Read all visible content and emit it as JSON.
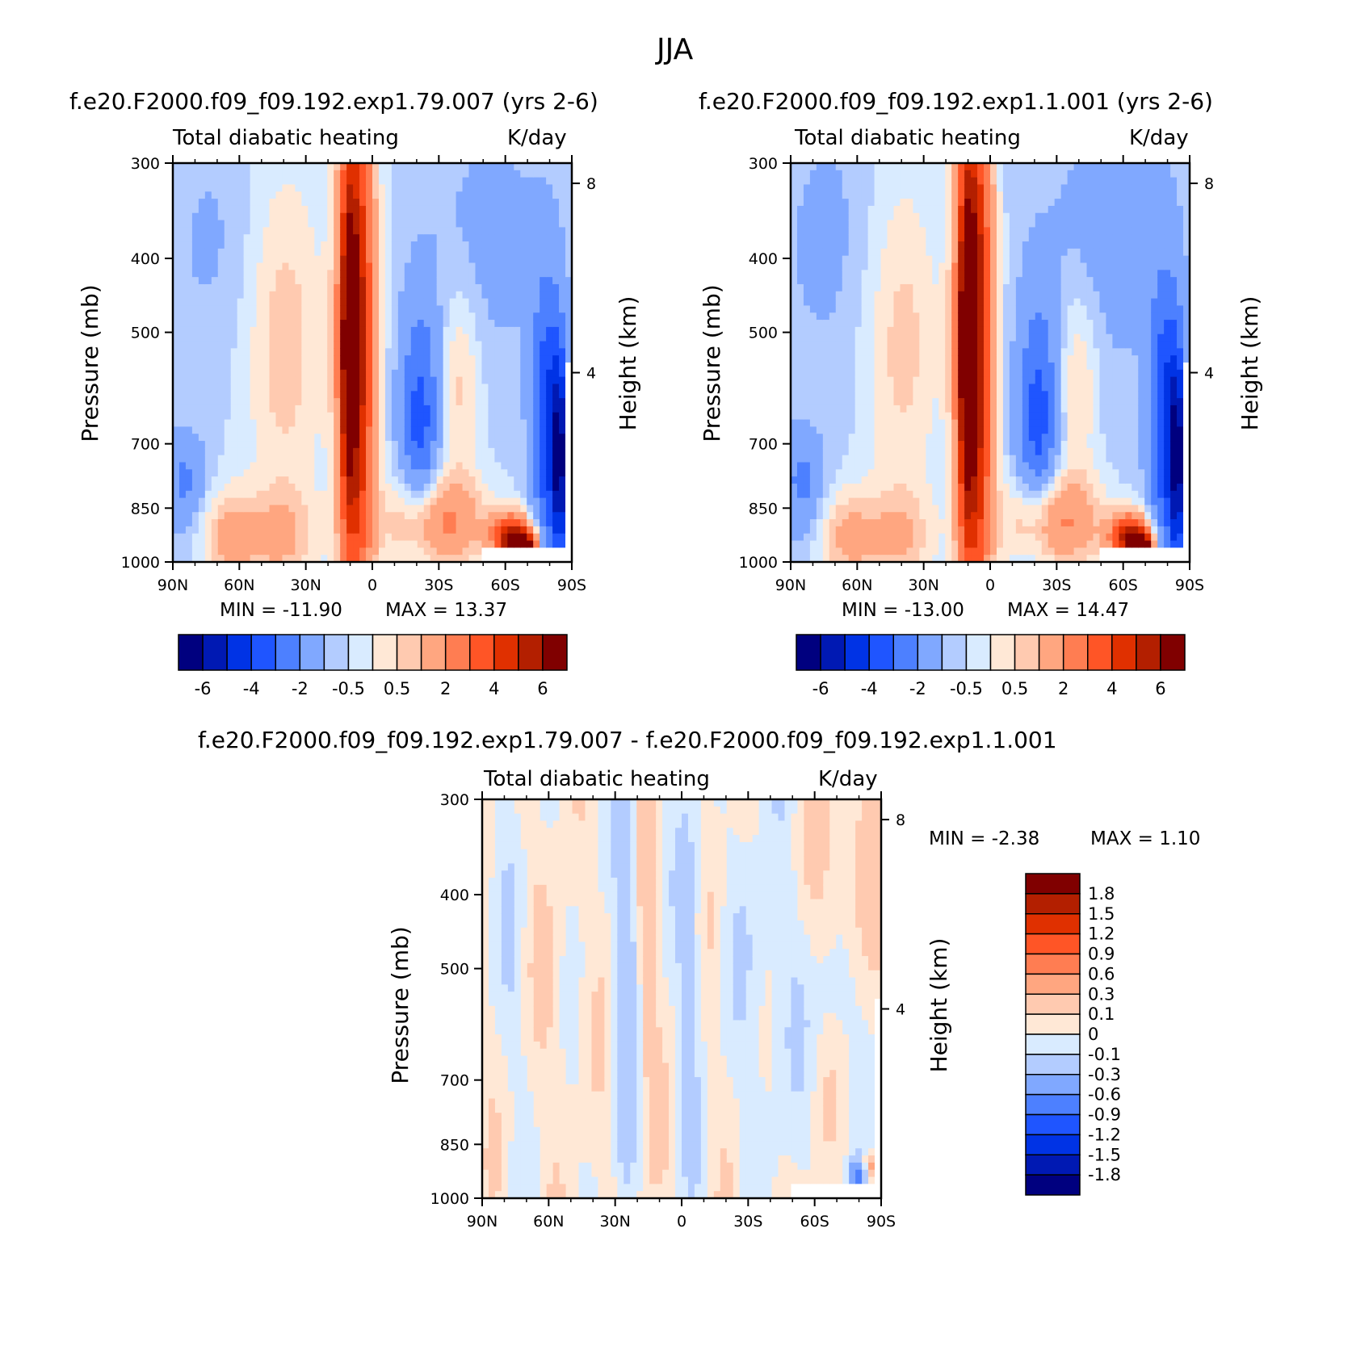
{
  "title": "JJA",
  "colors": {
    "palette": [
      "#00007f",
      "#0019b3",
      "#0033e5",
      "#1f55ff",
      "#4d80ff",
      "#80a8ff",
      "#b3ccff",
      "#d9ebff",
      "#ffe8d6",
      "#ffcab0",
      "#ffa680",
      "#ff7d52",
      "#ff5526",
      "#e03000",
      "#b31f00",
      "#800000"
    ],
    "diff_palette": [
      "#00007f",
      "#0019b3",
      "#0033e5",
      "#1f55ff",
      "#4d80ff",
      "#80a8ff",
      "#b3ccff",
      "#d9ebff",
      "#ffe8d6",
      "#ffcab0",
      "#ffa680",
      "#ff7d52",
      "#ff5526",
      "#e03000",
      "#b31f00",
      "#800000"
    ],
    "missing": "#ffffff"
  },
  "chart_data": [
    {
      "id": "panel1",
      "type": "heatmap",
      "title": "f.e20.F2000.f09_f09.192.exp1.79.007 (yrs 2-6)",
      "subtitle_left": "Total diabatic heating",
      "subtitle_right": "K/day",
      "xlabel": "",
      "ylabel": "Pressure (mb)",
      "ylabel_right": "Height (km)",
      "x_ticks": [
        "90N",
        "60N",
        "30N",
        "0",
        "30S",
        "60S",
        "90S"
      ],
      "y_ticks": [
        "300",
        "400",
        "500",
        "700",
        "850",
        "1000"
      ],
      "y_right_ticks": [
        "8",
        "4"
      ],
      "ylim": [
        1000,
        300
      ],
      "min_label": "MIN = -11.90",
      "max_label": "MAX = 13.37",
      "min": -11.9,
      "max": 13.37,
      "colorbar_labels": [
        "-6",
        "-4",
        "-2",
        "-0.5",
        "0.5",
        "2",
        "4",
        "6"
      ],
      "colorbar_levels": [
        -7,
        -6,
        -5,
        -4,
        -3,
        -2,
        -1,
        -0.5,
        0,
        0.5,
        1,
        2,
        3,
        4,
        5,
        6,
        7
      ]
    },
    {
      "id": "panel2",
      "type": "heatmap",
      "title": "f.e20.F2000.f09_f09.192.exp1.1.001 (yrs 2-6)",
      "subtitle_left": "Total diabatic heating",
      "subtitle_right": "K/day",
      "xlabel": "",
      "ylabel": "Pressure (mb)",
      "ylabel_right": "Height (km)",
      "x_ticks": [
        "90N",
        "60N",
        "30N",
        "0",
        "30S",
        "60S",
        "90S"
      ],
      "y_ticks": [
        "300",
        "400",
        "500",
        "700",
        "850",
        "1000"
      ],
      "y_right_ticks": [
        "8",
        "4"
      ],
      "ylim": [
        1000,
        300
      ],
      "min_label": "MIN = -13.00",
      "max_label": "MAX = 14.47",
      "min": -13.0,
      "max": 14.47,
      "colorbar_labels": [
        "-6",
        "-4",
        "-2",
        "-0.5",
        "0.5",
        "2",
        "4",
        "6"
      ],
      "colorbar_levels": [
        -7,
        -6,
        -5,
        -4,
        -3,
        -2,
        -1,
        -0.5,
        0,
        0.5,
        1,
        2,
        3,
        4,
        5,
        6,
        7
      ]
    },
    {
      "id": "panel3",
      "type": "heatmap",
      "title": "f.e20.F2000.f09_f09.192.exp1.79.007 - f.e20.F2000.f09_f09.192.exp1.1.001",
      "subtitle_left": "Total diabatic heating",
      "subtitle_right": "K/day",
      "xlabel": "",
      "ylabel": "Pressure (mb)",
      "ylabel_right": "Height (km)",
      "x_ticks": [
        "90N",
        "60N",
        "30N",
        "0",
        "30S",
        "60S",
        "90S"
      ],
      "y_ticks": [
        "300",
        "400",
        "500",
        "700",
        "850",
        "1000"
      ],
      "y_right_ticks": [
        "8",
        "4"
      ],
      "ylim": [
        1000,
        300
      ],
      "min_label": "MIN = -2.38",
      "max_label": "MAX = 1.10",
      "min": -2.38,
      "max": 1.1,
      "colorbar_labels": [
        "1.8",
        "1.5",
        "1.2",
        "0.9",
        "0.6",
        "0.3",
        "0.1",
        "0",
        "-0.1",
        "-0.3",
        "-0.6",
        "-0.9",
        "-1.2",
        "-1.5",
        "-1.8"
      ],
      "colorbar_levels": [
        1.8,
        1.5,
        1.2,
        0.9,
        0.6,
        0.3,
        0.1,
        0,
        -0.1,
        -0.3,
        -0.6,
        -0.9,
        -1.2,
        -1.5,
        -1.8
      ]
    }
  ]
}
